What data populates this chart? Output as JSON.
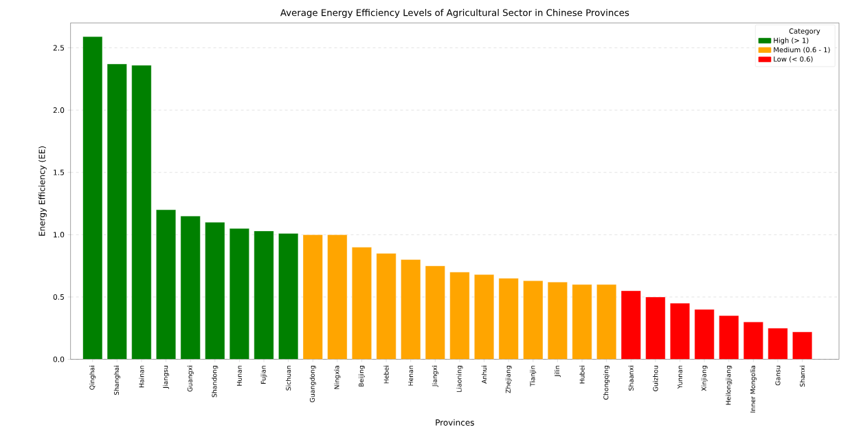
{
  "chart_data": {
    "type": "bar",
    "title": "Average Energy Efficiency Levels of Agricultural Sector in Chinese Provinces",
    "xlabel": "Provinces",
    "ylabel": "Energy Efficiency (EE)",
    "legend_title": "Category",
    "categories": [
      "Qinghai",
      "Shanghai",
      "Hainan",
      "Jiangsu",
      "Guangxi",
      "Shandong",
      "Hunan",
      "Fujian",
      "Sichuan",
      "Guangdong",
      "Ningxia",
      "Beijing",
      "Hebei",
      "Henan",
      "Jiangxi",
      "Liaoning",
      "Anhui",
      "Zhejiang",
      "Tianjin",
      "Jilin",
      "Hubei",
      "Chongqing",
      "Shaanxi",
      "Guizhou",
      "Yunnan",
      "Xinjiang",
      "Heilongjiang",
      "Inner Mongolia",
      "Gansu",
      "Shanxi"
    ],
    "series": [
      {
        "name": "High (> 1)",
        "color": "#008000",
        "values": [
          2.59,
          2.37,
          2.36,
          1.2,
          1.15,
          1.1,
          1.05,
          1.03,
          1.01,
          null,
          null,
          null,
          null,
          null,
          null,
          null,
          null,
          null,
          null,
          null,
          null,
          null,
          null,
          null,
          null,
          null,
          null,
          null,
          null,
          null
        ]
      },
      {
        "name": "Medium (0.6 - 1)",
        "color": "#ffa500",
        "values": [
          null,
          null,
          null,
          null,
          null,
          null,
          null,
          null,
          null,
          1.0,
          1.0,
          0.9,
          0.85,
          0.8,
          0.75,
          0.7,
          0.68,
          0.65,
          0.63,
          0.62,
          0.6,
          0.6,
          null,
          null,
          null,
          null,
          null,
          null,
          null,
          null
        ]
      },
      {
        "name": "Low (< 0.6)",
        "color": "#ff0000",
        "values": [
          null,
          null,
          null,
          null,
          null,
          null,
          null,
          null,
          null,
          null,
          null,
          null,
          null,
          null,
          null,
          null,
          null,
          null,
          null,
          null,
          null,
          null,
          0.55,
          0.5,
          0.45,
          0.4,
          0.35,
          0.3,
          0.25,
          0.22
        ]
      }
    ],
    "ylim": [
      0,
      2.7
    ],
    "yticks": [
      {
        "value": 0,
        "label": "0.0"
      },
      0.5,
      {
        "value": 1,
        "label": "1.0"
      },
      1.5,
      {
        "value": 2,
        "label": "2.0"
      },
      2.5
    ],
    "grid": "y",
    "legend": "top right"
  }
}
